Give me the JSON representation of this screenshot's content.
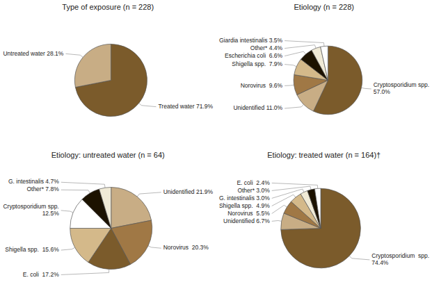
{
  "chart_data": [
    {
      "type": "pie",
      "title": "Type of exposure (n = 228)",
      "values": [
        71.9,
        28.1
      ],
      "value_labels": [
        "Treated water 71.9%",
        "Untreated water 28.1%"
      ],
      "colors": [
        "#7B5B2B",
        "#C8AD85"
      ],
      "data_labels": true
    },
    {
      "type": "pie",
      "title": "Etiology (n = 228)",
      "values": [
        57.0,
        11.0,
        9.6,
        7.9,
        6.6,
        4.4,
        3.5
      ],
      "value_labels": [
        "Cryptosporidium spp.\n57.0%",
        "Unidentified 11.0%",
        "Norovirus  9.6%",
        "Shigella spp.  7.9%",
        "Escherichia coli  6.6%",
        "Other* 4.4%",
        "Giardia intestinalis 3.5%"
      ],
      "colors": [
        "#7B5B2B",
        "#C8AD85",
        "#A07845",
        "#D4B98A",
        "#1C1200",
        "#F0EAD6",
        "#FFFFFF"
      ],
      "data_labels": true
    },
    {
      "type": "pie",
      "title": "Etiology: untreated water (n = 64)",
      "values": [
        21.9,
        20.3,
        17.2,
        15.6,
        12.5,
        7.8,
        4.7
      ],
      "value_labels": [
        "Unidentified 21.9%",
        "Norovirus  20.3%",
        "E. coli  17.2%",
        "Shigella spp.  15.6%",
        "Cryptosporidium spp.\n12.5%",
        "Other* 7.8%",
        "G. intestinalis 4.7%"
      ],
      "colors": [
        "#C8AD85",
        "#A07845",
        "#7B5B2B",
        "#D4B98A",
        "#FFFFFF",
        "#1C1200",
        "#F0EAD6"
      ],
      "data_labels": true
    },
    {
      "type": "pie",
      "title": "Etiology: treated water (n = 164)†",
      "values": [
        74.4,
        6.7,
        5.5,
        4.9,
        3.0,
        3.0,
        2.4
      ],
      "value_labels": [
        "Cryptosporidium  spp.\n74.4%",
        "Unidentified 6.7%",
        "Norovirus  5.5%",
        "Shigella spp.  4.9%",
        "G. intestinalis 3.0%",
        "Other* 3.0%",
        "E. coli  2.4%"
      ],
      "colors": [
        "#7B5B2B",
        "#C8AD85",
        "#A07845",
        "#D4B98A",
        "#F0EAD6",
        "#1C1200",
        "#FFFFFF"
      ],
      "data_labels": true
    }
  ]
}
